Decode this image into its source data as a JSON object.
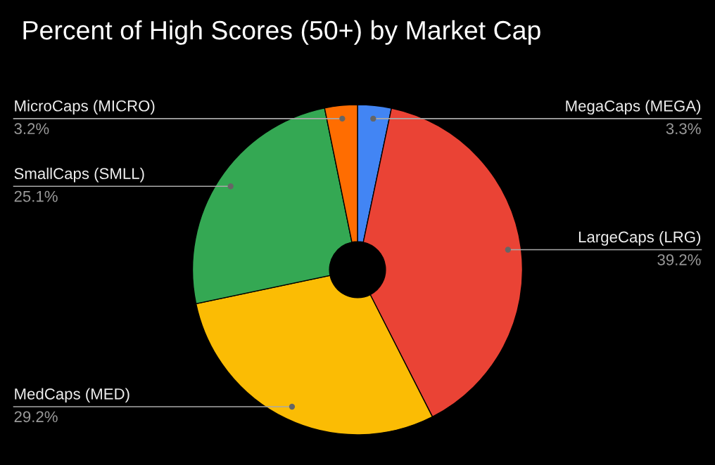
{
  "chart_data": {
    "type": "donut",
    "title": "Percent of High Scores (50+) by Market Cap",
    "categories": [
      "MegaCaps (MEGA)",
      "LargeCaps (LRG)",
      "MedCaps (MED)",
      "SmallCaps (SMLL)",
      "MicroCaps (MICRO)"
    ],
    "values": [
      3.3,
      39.2,
      29.2,
      25.1,
      3.2
    ],
    "value_labels": [
      "3.3%",
      "39.2%",
      "29.2%",
      "25.1%",
      "3.2%"
    ],
    "colors": [
      "#4285f4",
      "#ea4335",
      "#fbbc04",
      "#34a853",
      "#ff6d01"
    ],
    "legend": false
  }
}
